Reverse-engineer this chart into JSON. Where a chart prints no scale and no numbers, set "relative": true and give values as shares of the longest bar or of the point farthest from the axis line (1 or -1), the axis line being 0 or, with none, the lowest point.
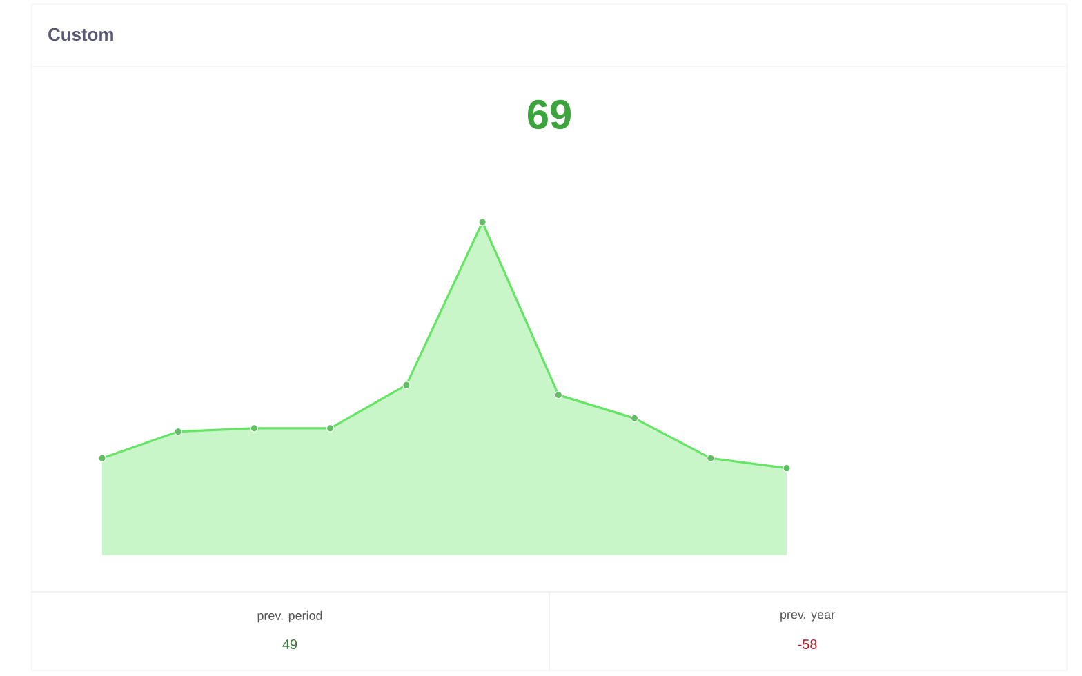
{
  "chart_data": {
    "type": "area",
    "title": "Custom",
    "relative": true,
    "marker": "circle",
    "color": "#66e466",
    "categories": [
      null,
      null,
      null,
      null,
      null,
      null,
      null,
      null,
      null,
      null
    ],
    "values": [
      0.29,
      0.37,
      0.38,
      0.38,
      0.51,
      1,
      0.48,
      0.41,
      0.29,
      0.26
    ],
    "annotations": [
      "69",
      "prev. period",
      "49",
      "prev. year",
      "-58"
    ]
  }
}
